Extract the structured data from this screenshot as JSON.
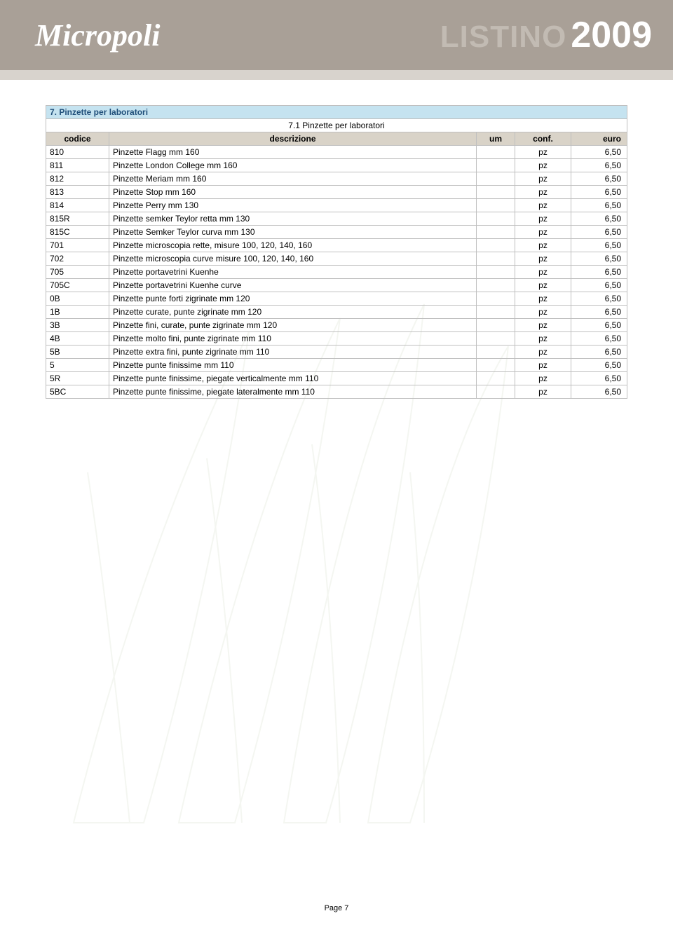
{
  "header": {
    "brand": "Micropoli",
    "listino": "LISTINO",
    "year": "2009"
  },
  "section": {
    "title": "7. Pinzette per laboratori",
    "subtitle": "7.1 Pinzette per laboratori"
  },
  "columns": {
    "codice": "codice",
    "descrizione": "descrizione",
    "um": "um",
    "conf": "conf.",
    "euro": "euro"
  },
  "rows": [
    {
      "code": "810",
      "desc": "Pinzette Flagg mm 160",
      "um": "",
      "conf": "pz",
      "euro": "6,50"
    },
    {
      "code": "811",
      "desc": "Pinzette London College mm 160",
      "um": "",
      "conf": "pz",
      "euro": "6,50"
    },
    {
      "code": "812",
      "desc": "Pinzette Meriam mm 160",
      "um": "",
      "conf": "pz",
      "euro": "6,50"
    },
    {
      "code": "813",
      "desc": "Pinzette Stop mm 160",
      "um": "",
      "conf": "pz",
      "euro": "6,50"
    },
    {
      "code": "814",
      "desc": "Pinzette Perry mm 130",
      "um": "",
      "conf": "pz",
      "euro": "6,50"
    },
    {
      "code": "815R",
      "desc": "Pinzette semker Teylor retta mm 130",
      "um": "",
      "conf": "pz",
      "euro": "6,50"
    },
    {
      "code": "815C",
      "desc": "Pinzette Semker Teylor curva mm 130",
      "um": "",
      "conf": "pz",
      "euro": "6,50"
    },
    {
      "code": "701",
      "desc": "Pinzette microscopia rette, misure 100, 120, 140, 160",
      "um": "",
      "conf": "pz",
      "euro": "6,50"
    },
    {
      "code": "702",
      "desc": "Pinzette microscopia curve misure 100, 120, 140, 160",
      "um": "",
      "conf": "pz",
      "euro": "6,50"
    },
    {
      "code": "705",
      "desc": "Pinzette portavetrini Kuenhe",
      "um": "",
      "conf": "pz",
      "euro": "6,50"
    },
    {
      "code": "705C",
      "desc": "Pinzette portavetrini Kuenhe curve",
      "um": "",
      "conf": "pz",
      "euro": "6,50"
    },
    {
      "code": "0B",
      "desc": "Pinzette punte forti zigrinate mm 120",
      "um": "",
      "conf": "pz",
      "euro": "6,50"
    },
    {
      "code": "1B",
      "desc": "Pinzette curate, punte zigrinate mm 120",
      "um": "",
      "conf": "pz",
      "euro": "6,50"
    },
    {
      "code": "3B",
      "desc": "Pinzette fini, curate, punte zigrinate mm 120",
      "um": "",
      "conf": "pz",
      "euro": "6,50"
    },
    {
      "code": "4B",
      "desc": "Pinzette molto fini, punte zigrinate mm 110",
      "um": "",
      "conf": "pz",
      "euro": "6,50"
    },
    {
      "code": "5B",
      "desc": "Pinzette extra fini, punte zigrinate mm 110",
      "um": "",
      "conf": "pz",
      "euro": "6,50"
    },
    {
      "code": "5",
      "desc": "Pinzette punte finissime mm 110",
      "um": "",
      "conf": "pz",
      "euro": "6,50"
    },
    {
      "code": "5R",
      "desc": "Pinzette punte finissime, piegate verticalmente mm 110",
      "um": "",
      "conf": "pz",
      "euro": "6,50"
    },
    {
      "code": "5BC",
      "desc": "Pinzette punte finissime, piegate lateralmente mm 110",
      "um": "",
      "conf": "pz",
      "euro": "6,50"
    }
  ],
  "footer": {
    "page": "Page 7"
  },
  "colors": {
    "header_bg": "#a9a097",
    "header_strip": "#d8d3cd",
    "section_bg": "#c5e3f0",
    "section_text": "#1f4e79",
    "colhead_bg": "#d9d3c8",
    "border": "#bfbfbf"
  }
}
